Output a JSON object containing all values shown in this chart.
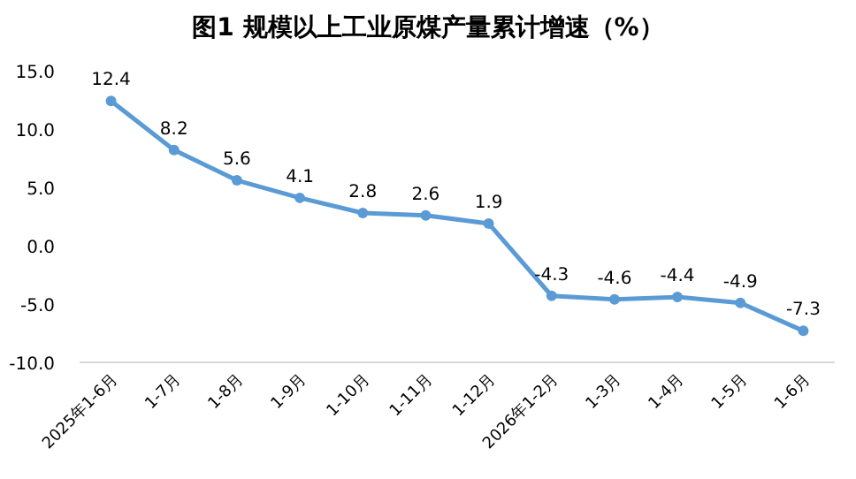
{
  "chart_data": {
    "type": "line",
    "title": "图1 规模以上工业原煤产量累计增速（%）",
    "categories": [
      "2025年1-6月",
      "1-7月",
      "1-8月",
      "1-9月",
      "1-10月",
      "1-11月",
      "1-12月",
      "2026年1-2月",
      "1-3月",
      "1-4月",
      "1-5月",
      "1-6月"
    ],
    "values": [
      12.4,
      8.2,
      5.6,
      4.1,
      2.8,
      2.6,
      1.9,
      -4.3,
      -4.6,
      -4.4,
      -4.9,
      -7.3
    ],
    "color": "#5b9bd5",
    "marker": "circle",
    "data_labels": true,
    "ylim": [
      -10,
      15
    ],
    "yticks": [
      {
        "value": -10,
        "label": "-10.0"
      },
      {
        "value": -5,
        "label": "-5.0"
      },
      {
        "value": 0,
        "label": "0.0"
      },
      {
        "value": 5,
        "label": "5.0"
      },
      {
        "value": 10,
        "label": "10.0"
      },
      {
        "value": 15,
        "label": "15.0"
      }
    ]
  }
}
